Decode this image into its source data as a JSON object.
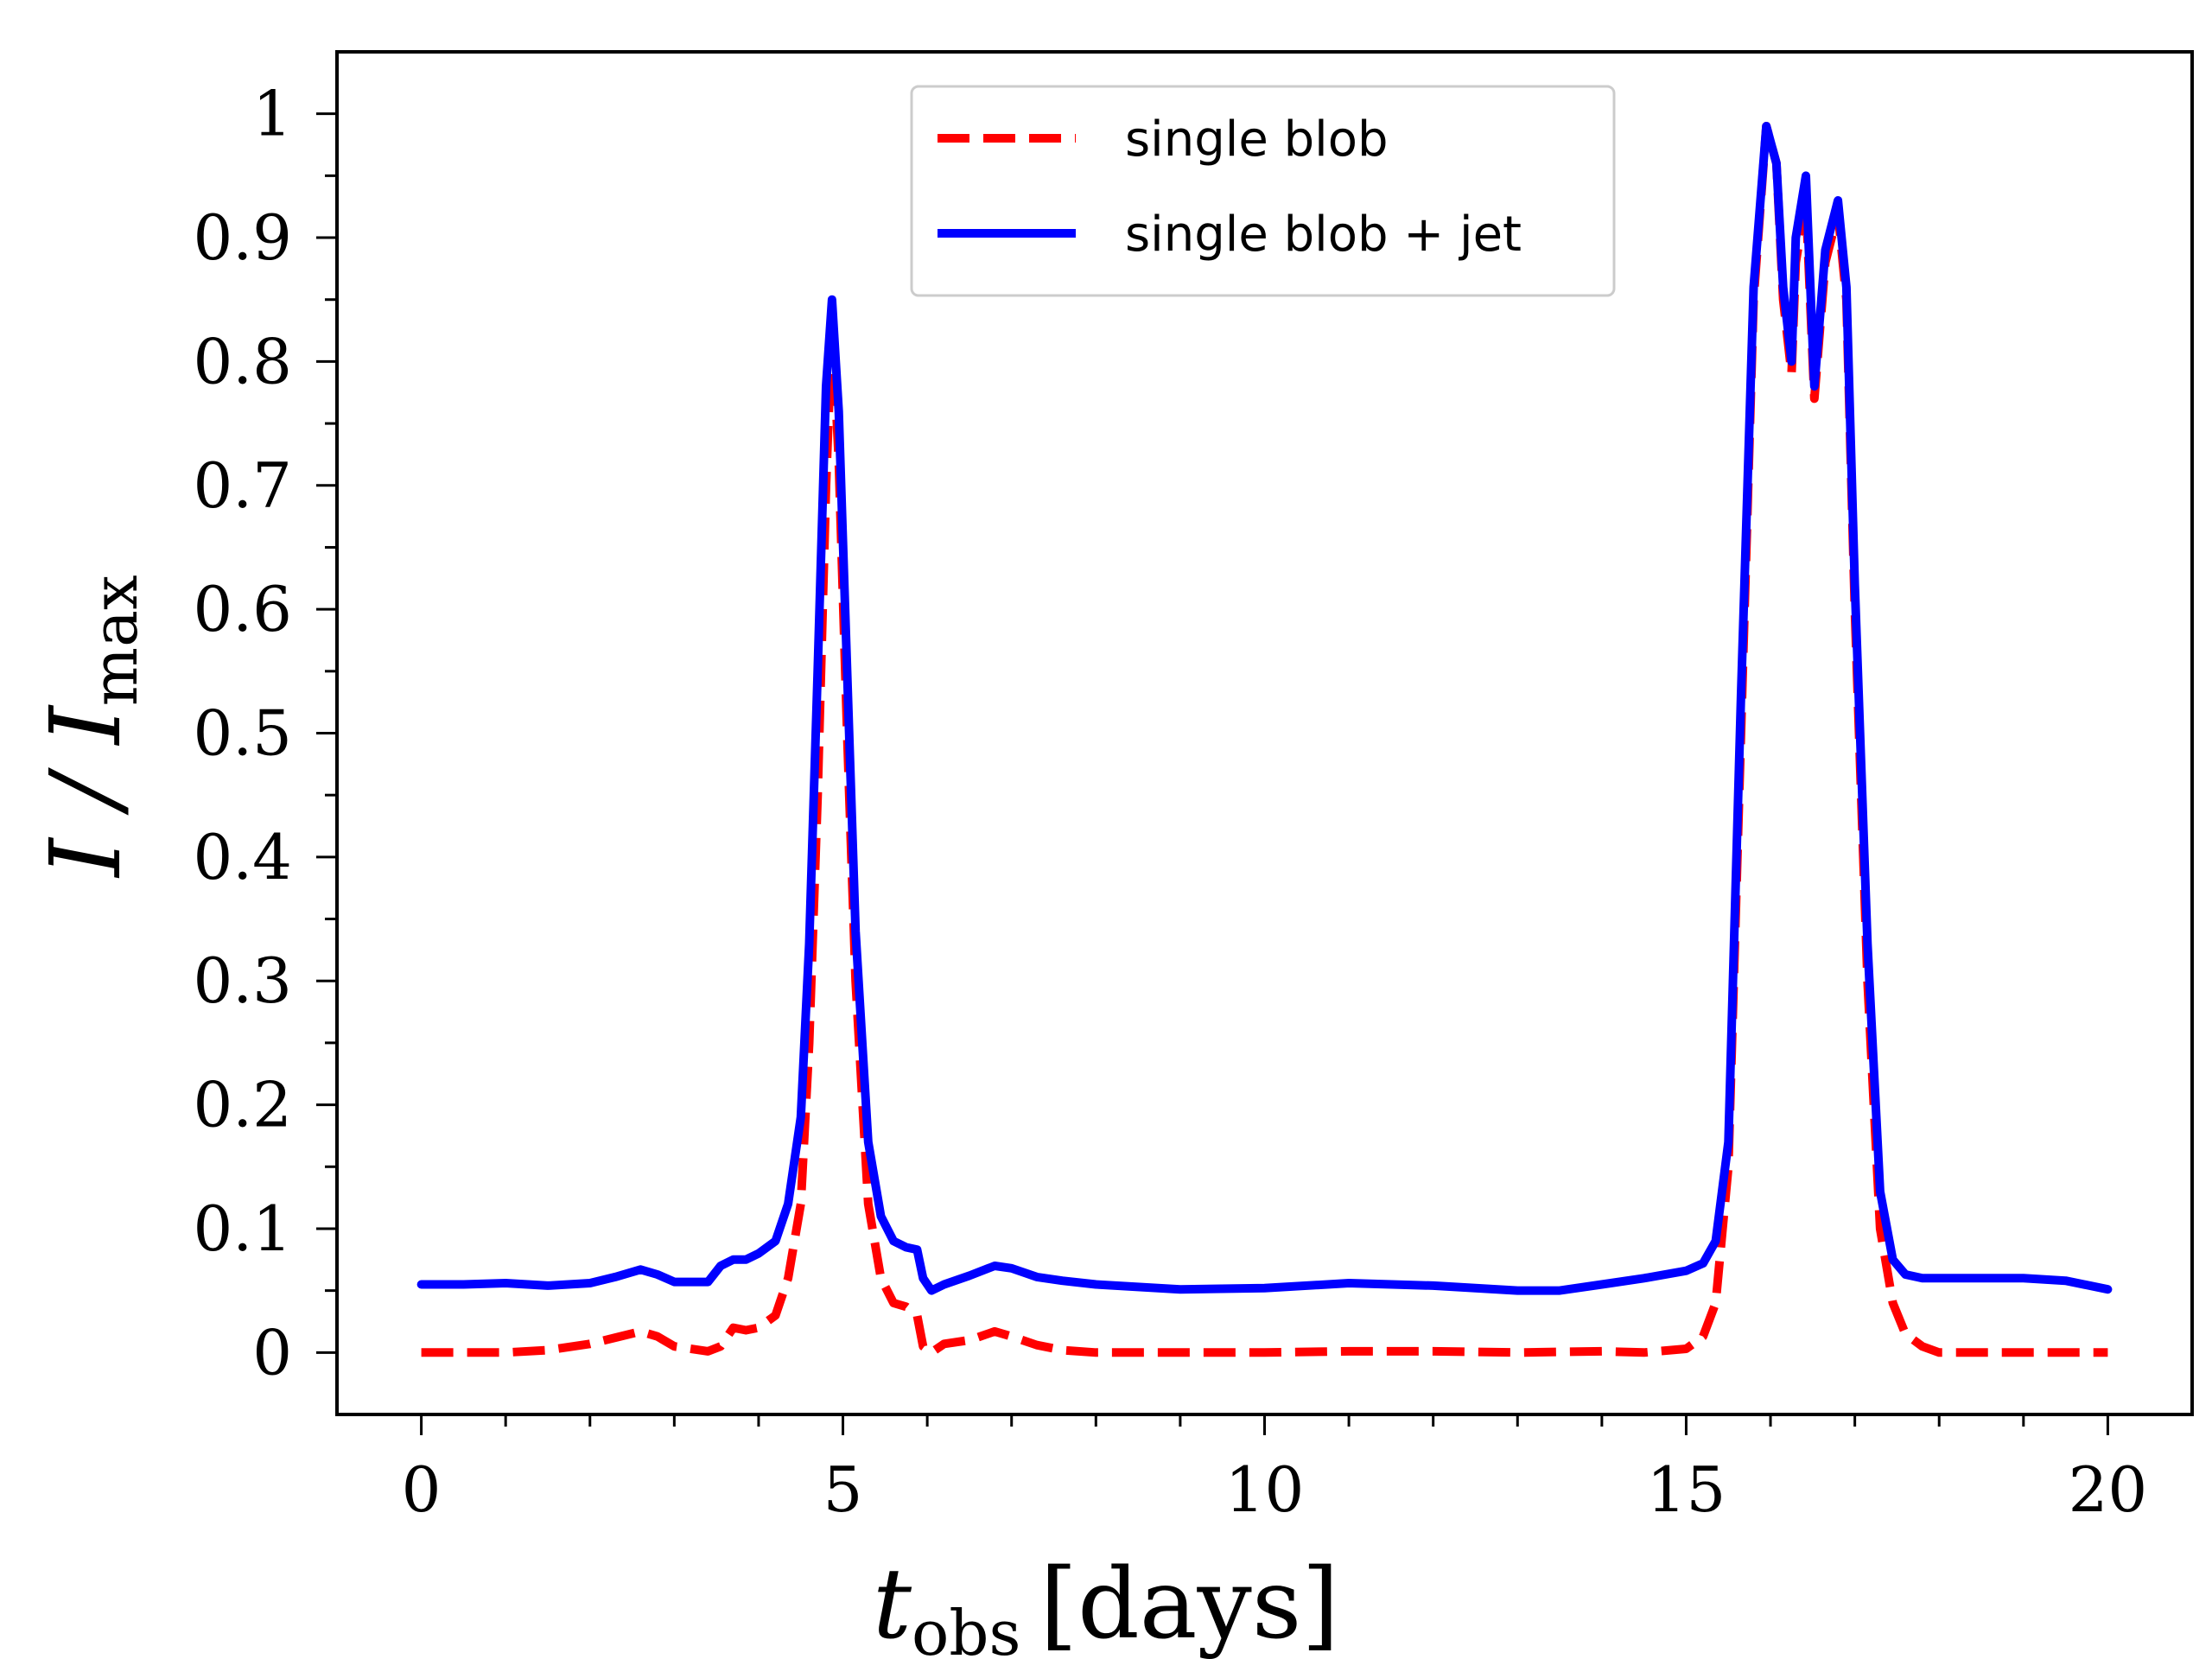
{
  "chart_data": {
    "type": "line",
    "title": "",
    "xlabel": "t_obs [days]",
    "xlabel_main": "t",
    "xlabel_sub": "obs",
    "xlabel_unit": "[days]",
    "ylabel": "I / I_max",
    "ylabel_main": "I / I",
    "ylabel_sub": "max",
    "xlim": [
      -1,
      21
    ],
    "ylim": [
      -0.05,
      1.05
    ],
    "xticks": [
      0,
      5,
      10,
      15,
      20
    ],
    "xtick_labels": [
      "0",
      "5",
      "10",
      "15",
      "20"
    ],
    "yticks": [
      0,
      0.1,
      0.2,
      0.3,
      0.4,
      0.5,
      0.6,
      0.7,
      0.8,
      0.9,
      1
    ],
    "ytick_labels": [
      "0",
      "0.1",
      "0.2",
      "0.3",
      "0.4",
      "0.5",
      "0.6",
      "0.7",
      "0.8",
      "0.9",
      "1"
    ],
    "legend_position": "upper-center",
    "series": [
      {
        "name": "single blob",
        "color": "#ff0000",
        "style": "dashed",
        "x": [
          0,
          1,
          1.5,
          2.0,
          2.3,
          2.6,
          2.8,
          3.0,
          3.4,
          3.55,
          3.7,
          3.85,
          4.0,
          4.2,
          4.35,
          4.5,
          4.6,
          4.7,
          4.8,
          4.87,
          4.95,
          5.05,
          5.15,
          5.3,
          5.45,
          5.6,
          5.75,
          5.88,
          5.95,
          6.05,
          6.2,
          6.5,
          6.8,
          7.0,
          7.3,
          7.6,
          8,
          9,
          10,
          11,
          12,
          13,
          14,
          14.5,
          15.0,
          15.2,
          15.35,
          15.5,
          15.65,
          15.8,
          15.95,
          16.07,
          16.15,
          16.25,
          16.3,
          16.42,
          16.52,
          16.65,
          16.8,
          16.9,
          17.0,
          17.15,
          17.3,
          17.45,
          17.6,
          17.8,
          18.0,
          18.5,
          19,
          19.5,
          20
        ],
        "values": [
          0,
          0,
          0.002,
          0.007,
          0.012,
          0.017,
          0.013,
          0.005,
          0.001,
          0.005,
          0.02,
          0.018,
          0.02,
          0.03,
          0.06,
          0.12,
          0.25,
          0.45,
          0.7,
          0.83,
          0.72,
          0.5,
          0.3,
          0.12,
          0.06,
          0.04,
          0.037,
          0.03,
          0.005,
          0,
          0.007,
          0.01,
          0.017,
          0.013,
          0.006,
          0.002,
          0,
          0,
          0,
          0.001,
          0.001,
          0,
          0.001,
          0,
          0.003,
          0.013,
          0.04,
          0.15,
          0.5,
          0.85,
          0.99,
          0.96,
          0.85,
          0.79,
          0.88,
          0.93,
          0.77,
          0.88,
          0.92,
          0.85,
          0.6,
          0.3,
          0.1,
          0.04,
          0.015,
          0.005,
          0,
          0,
          0,
          0,
          0
        ]
      },
      {
        "name": "single blob + jet",
        "color": "#0000ff",
        "style": "solid",
        "x": [
          0,
          0.5,
          1,
          1.5,
          2.0,
          2.3,
          2.6,
          2.8,
          3.0,
          3.4,
          3.55,
          3.7,
          3.85,
          4.0,
          4.2,
          4.35,
          4.5,
          4.6,
          4.7,
          4.8,
          4.87,
          4.95,
          5.05,
          5.15,
          5.3,
          5.45,
          5.6,
          5.75,
          5.88,
          5.95,
          6.05,
          6.2,
          6.5,
          6.8,
          7.0,
          7.3,
          7.6,
          8,
          9,
          10,
          11,
          12,
          13,
          13.5,
          14,
          14.5,
          15.0,
          15.2,
          15.35,
          15.5,
          15.65,
          15.8,
          15.95,
          16.07,
          16.15,
          16.25,
          16.3,
          16.42,
          16.52,
          16.65,
          16.8,
          16.9,
          17.0,
          17.15,
          17.3,
          17.45,
          17.6,
          17.8,
          18.0,
          18.5,
          19,
          19.5,
          20
        ],
        "values": [
          0.055,
          0.055,
          0.056,
          0.054,
          0.056,
          0.061,
          0.067,
          0.063,
          0.057,
          0.057,
          0.07,
          0.075,
          0.075,
          0.08,
          0.09,
          0.12,
          0.19,
          0.33,
          0.55,
          0.78,
          0.85,
          0.76,
          0.55,
          0.34,
          0.17,
          0.11,
          0.09,
          0.085,
          0.083,
          0.06,
          0.05,
          0.055,
          0.062,
          0.07,
          0.068,
          0.061,
          0.058,
          0.055,
          0.051,
          0.052,
          0.056,
          0.054,
          0.05,
          0.05,
          0.055,
          0.06,
          0.066,
          0.072,
          0.09,
          0.17,
          0.53,
          0.86,
          0.99,
          0.96,
          0.86,
          0.8,
          0.9,
          0.95,
          0.78,
          0.89,
          0.93,
          0.86,
          0.62,
          0.33,
          0.13,
          0.075,
          0.063,
          0.06,
          0.06,
          0.06,
          0.06,
          0.058,
          0.051
        ]
      }
    ]
  }
}
